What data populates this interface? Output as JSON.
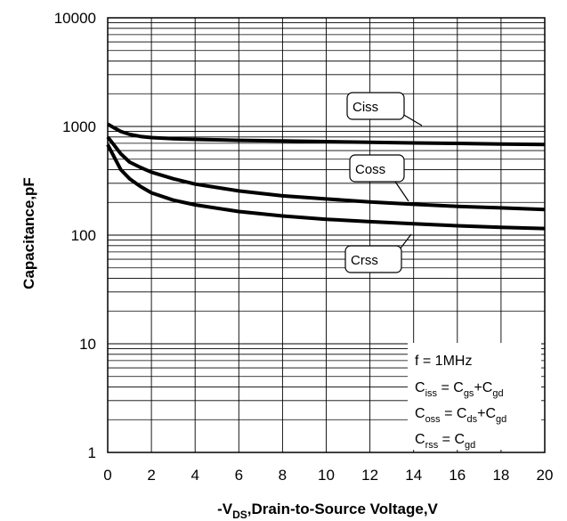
{
  "chart_data": {
    "type": "line",
    "title": "",
    "xlabel": {
      "prefix": "-V",
      "sub": "DS",
      "rest": ",Drain-to-Source Voltage,V"
    },
    "ylabel": "Capacitance,pF",
    "xlim": [
      0,
      20
    ],
    "ylim": [
      1,
      10000
    ],
    "yscale": "log",
    "grid": true,
    "x_ticks": [
      "0",
      "2",
      "4",
      "6",
      "8",
      "10",
      "12",
      "14",
      "16",
      "18",
      "20"
    ],
    "y_ticks": [
      "1",
      "10",
      "100",
      "1000",
      "10000"
    ],
    "series": [
      {
        "name": "Ciss",
        "x": [
          0,
          0.3,
          0.6,
          1,
          1.5,
          2,
          3,
          4,
          6,
          8,
          10,
          12,
          14,
          16,
          18,
          20
        ],
        "y": [
          1050,
          970,
          900,
          845,
          810,
          790,
          770,
          760,
          745,
          735,
          725,
          715,
          705,
          698,
          690,
          682
        ]
      },
      {
        "name": "Coss",
        "x": [
          0,
          0.3,
          0.6,
          1,
          1.5,
          2,
          3,
          4,
          6,
          8,
          10,
          12,
          14,
          16,
          18,
          20
        ],
        "y": [
          800,
          670,
          560,
          470,
          420,
          380,
          330,
          295,
          255,
          230,
          215,
          202,
          192,
          184,
          178,
          172
        ]
      },
      {
        "name": "Crss",
        "x": [
          0,
          0.3,
          0.6,
          1,
          1.5,
          2,
          3,
          4,
          6,
          8,
          10,
          12,
          14,
          16,
          18,
          20
        ],
        "y": [
          680,
          520,
          400,
          330,
          280,
          245,
          210,
          190,
          165,
          150,
          140,
          133,
          127,
          122,
          118,
          115
        ]
      }
    ],
    "callouts": [
      {
        "label": "Ciss"
      },
      {
        "label": "Coss"
      },
      {
        "label": "Crss"
      }
    ],
    "legend": {
      "placement": "bottom-right",
      "lines": [
        {
          "main": "f = 1MHz"
        },
        {
          "main": "C",
          "sub": "iss",
          "eq": " = C",
          "sub2": "gs",
          "mid": "+C",
          "sub3": "gd"
        },
        {
          "main": "C",
          "sub": "oss",
          "eq": " = C",
          "sub2": "ds",
          "mid": "+C",
          "sub3": "gd"
        },
        {
          "main": "C",
          "sub": "rss",
          "eq": " = C",
          "sub2": "gd"
        }
      ]
    }
  }
}
